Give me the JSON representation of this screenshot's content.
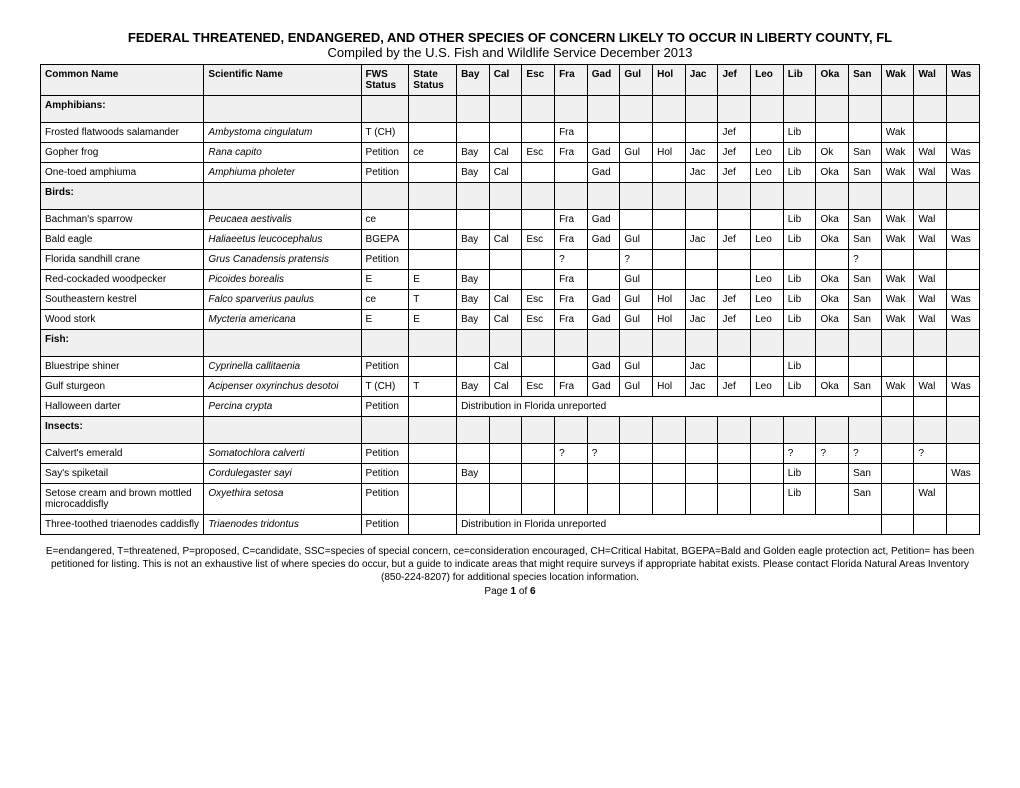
{
  "title_line1": "FEDERAL THREATENED, ENDANGERED, AND OTHER SPECIES OF CONCERN LIKELY TO OCCUR IN LIBERTY COUNTY, FL",
  "title_line2": "Compiled by the U.S. Fish and Wildlife Service December 2013",
  "columns": {
    "common": "Common Name",
    "scientific": "Scientific Name",
    "fws": "FWS Status",
    "state": "State Status",
    "counties": [
      "Bay",
      "Cal",
      "Esc",
      "Fra",
      "Gad",
      "Gul",
      "Hol",
      "Jac",
      "Jef",
      "Leo",
      "Lib",
      "Oka",
      "San",
      "Wak",
      "Wal",
      "Was"
    ]
  },
  "categories": [
    {
      "label": "Amphibians:",
      "rows": [
        {
          "common": "Frosted flatwoods salamander",
          "sci": "Ambystoma cingulatum",
          "fws": "T (CH)",
          "state": "",
          "cty": [
            "",
            "",
            "",
            "Fra",
            "",
            "",
            "",
            "",
            "Jef",
            "",
            "Lib",
            "",
            "",
            "Wak",
            "",
            ""
          ]
        },
        {
          "common": "Gopher frog",
          "sci": "Rana capito",
          "fws": "Petition",
          "state": "ce",
          "cty": [
            "Bay",
            "Cal",
            "Esc",
            "Fra",
            "Gad",
            "Gul",
            "Hol",
            "Jac",
            "Jef",
            "Leo",
            "Lib",
            "Ok",
            "San",
            "Wak",
            "Wal",
            "Was"
          ]
        },
        {
          "common": "One-toed amphiuma",
          "sci": "Amphiuma pholeter",
          "fws": "Petition",
          "state": "",
          "cty": [
            "Bay",
            "Cal",
            "",
            "",
            "Gad",
            "",
            "",
            "Jac",
            "Jef",
            "Leo",
            "Lib",
            "Oka",
            "San",
            "Wak",
            "Wal",
            "Was"
          ]
        }
      ]
    },
    {
      "label": "Birds:",
      "rows": [
        {
          "common": "Bachman's sparrow",
          "sci": "Peucaea aestivalis",
          "fws": "ce",
          "state": "",
          "cty": [
            "",
            "",
            "",
            "Fra",
            "Gad",
            "",
            "",
            "",
            "",
            "",
            "Lib",
            "Oka",
            "San",
            "Wak",
            "Wal",
            ""
          ]
        },
        {
          "common": "Bald eagle",
          "sci": "Haliaeetus leucocephalus",
          "fws": "BGEPA",
          "state": "",
          "cty": [
            "Bay",
            "Cal",
            "Esc",
            "Fra",
            "Gad",
            "Gul",
            "",
            "Jac",
            "Jef",
            "Leo",
            "Lib",
            "Oka",
            "San",
            "Wak",
            "Wal",
            "Was"
          ]
        },
        {
          "common": "Florida sandhill crane",
          "sci": "Grus Canadensis pratensis",
          "fws": "Petition",
          "state": "",
          "cty": [
            "",
            "",
            "",
            "?",
            "",
            "?",
            "",
            "",
            "",
            "",
            "",
            "",
            "?",
            "",
            "",
            ""
          ]
        },
        {
          "common": "Red-cockaded woodpecker",
          "sci": "Picoides borealis",
          "fws": "E",
          "state": "E",
          "cty": [
            "Bay",
            "",
            "",
            "Fra",
            "",
            "Gul",
            "",
            "",
            "",
            "Leo",
            "Lib",
            "Oka",
            "San",
            "Wak",
            "Wal",
            ""
          ]
        },
        {
          "common": "Southeastern kestrel",
          "sci": "Falco sparverius paulus",
          "fws": "ce",
          "state": "T",
          "cty": [
            "Bay",
            "Cal",
            "Esc",
            "Fra",
            "Gad",
            "Gul",
            "Hol",
            "Jac",
            "Jef",
            "Leo",
            "Lib",
            "Oka",
            "San",
            "Wak",
            "Wal",
            "Was"
          ]
        },
        {
          "common": "Wood stork",
          "sci": "Mycteria americana",
          "fws": "E",
          "state": "E",
          "cty": [
            "Bay",
            "Cal",
            "Esc",
            "Fra",
            "Gad",
            "Gul",
            "Hol",
            "Jac",
            "Jef",
            "Leo",
            "Lib",
            "Oka",
            "San",
            "Wak",
            "Wal",
            "Was"
          ]
        }
      ]
    },
    {
      "label": "Fish:",
      "rows": [
        {
          "common": "Bluestripe shiner",
          "sci": "Cyprinella callitaenia",
          "fws": "Petition",
          "state": "",
          "cty": [
            "",
            "Cal",
            "",
            "",
            "Gad",
            "Gul",
            "",
            "Jac",
            "",
            "",
            "Lib",
            "",
            "",
            "",
            "",
            ""
          ]
        },
        {
          "common": "Gulf sturgeon",
          "sci": "Acipenser oxyrinchus desotoi",
          "fws": "T (CH)",
          "state": "T",
          "cty": [
            "Bay",
            "Cal",
            "Esc",
            "Fra",
            "Gad",
            "Gul",
            "Hol",
            "Jac",
            "Jef",
            "Leo",
            "Lib",
            "Oka",
            "San",
            "Wak",
            "Wal",
            "Was"
          ]
        },
        {
          "common": "Halloween darter",
          "sci": "Percina crypta",
          "fws": "Petition",
          "state": "",
          "note": "Distribution in Florida unreported"
        }
      ]
    },
    {
      "label": "Insects:",
      "rows": [
        {
          "common": "Calvert's emerald",
          "sci": "Somatochlora calverti",
          "fws": "Petition",
          "state": "",
          "cty": [
            "",
            "",
            "",
            "?",
            "?",
            "",
            "",
            "",
            "",
            "",
            "?",
            "?",
            "?",
            "",
            "?",
            ""
          ]
        },
        {
          "common": "Say's spiketail",
          "sci": "Cordulegaster sayi",
          "fws": "Petition",
          "state": "",
          "cty": [
            "Bay",
            "",
            "",
            "",
            "",
            "",
            "",
            "",
            "",
            "",
            "Lib",
            "",
            "San",
            "",
            "",
            "Was"
          ]
        },
        {
          "common": "Setose cream and brown mottled microcaddisfly",
          "sci": "Oxyethira setosa",
          "fws": "Petition",
          "state": "",
          "cty": [
            "",
            "",
            "",
            "",
            "",
            "",
            "",
            "",
            "",
            "",
            "Lib",
            "",
            "San",
            "",
            "Wal",
            ""
          ]
        },
        {
          "common": "Three-toothed triaenodes caddisfly",
          "sci": "Triaenodes tridontus",
          "fws": "Petition",
          "state": "",
          "note": "Distribution in Florida unreported"
        }
      ]
    }
  ],
  "footnote": "E=endangered, T=threatened, P=proposed, C=candidate, SSC=species of special concern, ce=consideration encouraged, CH=Critical Habitat, BGEPA=Bald and Golden eagle protection act, Petition= has been petitioned for listing.  This is not an exhaustive list of where species do occur, but a guide to indicate areas that might require surveys if appropriate habitat exists.  Please contact Florida Natural Areas Inventory (850-224-8207) for additional species location information.",
  "page_label_prefix": "Page ",
  "page_current": "1",
  "page_of": " of ",
  "page_total": "6"
}
